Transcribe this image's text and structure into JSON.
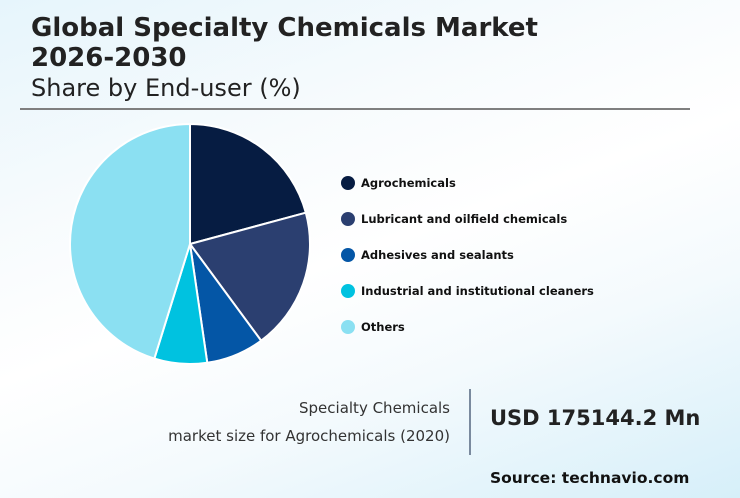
{
  "header": {
    "title_line1": "Global Specialty Chemicals Market",
    "title_line2": "2026-2030",
    "subtitle": "Share by End-user (%)"
  },
  "legend": [
    {
      "label": "Agrochemicals",
      "color": "#061c42"
    },
    {
      "label": "Lubricant and oilfield chemicals",
      "color": "#2b3f70"
    },
    {
      "label": "Adhesives and sealants",
      "color": "#0456a6"
    },
    {
      "label": "Industrial and institutional cleaners",
      "color": "#00c2e0"
    },
    {
      "label": "Others",
      "color": "#8be0f2"
    }
  ],
  "stat": {
    "label_line1": "Specialty Chemicals",
    "label_line2": "market size for Agrochemicals (2020)",
    "value": "USD 175144.2 Mn"
  },
  "footer": {
    "source": "Source: technavio.com"
  },
  "chart_data": {
    "type": "pie",
    "title": "Global Specialty Chemicals Market 2026-2030",
    "subtitle": "Share by End-user (%)",
    "categories": [
      "Agrochemicals",
      "Lubricant and oilfield chemicals",
      "Adhesives and sealants",
      "Industrial and institutional cleaners",
      "Others"
    ],
    "values": [
      20.8,
      19.1,
      7.8,
      7.1,
      45.2
    ],
    "colors": [
      "#061c42",
      "#2b3f70",
      "#0456a6",
      "#00c2e0",
      "#8be0f2"
    ],
    "start_angle": "12 o'clock, clockwise",
    "legend_position": "right"
  }
}
